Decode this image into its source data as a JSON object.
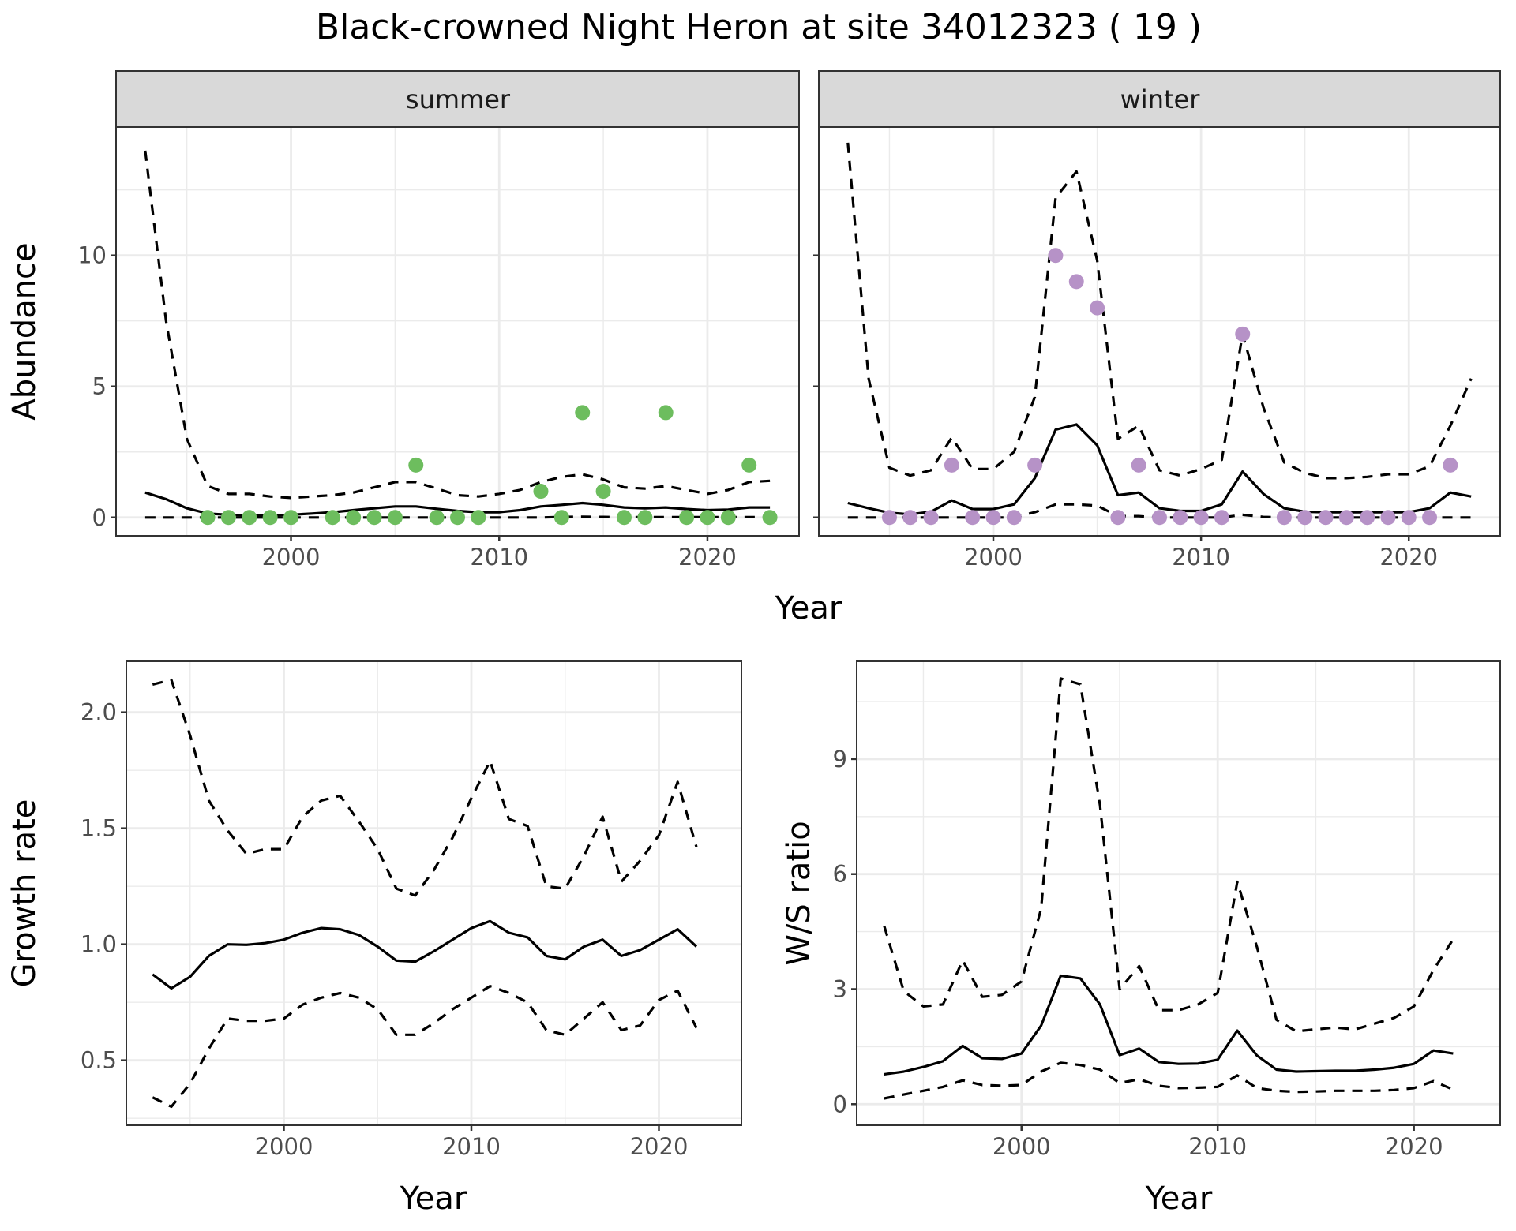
{
  "title": "Black-crowned Night Heron at site 34012323 ( 19 )",
  "colors": {
    "summer_points": "#6dbd5e",
    "winter_points": "#b692c7",
    "line": "#000000",
    "strip_bg": "#d9d9d9",
    "grid": "#ebebeb",
    "border": "#333333",
    "tick_text": "#4d4d4d"
  },
  "chart_data": [
    {
      "type": "line",
      "panel": "summer",
      "strip_label": "summer",
      "xlabel": "Year",
      "ylabel": "Abundance",
      "xlim": [
        1991.6,
        2024.4
      ],
      "ylim": [
        -0.7,
        14.9
      ],
      "xticks": [
        2000,
        2010,
        2020
      ],
      "yticks": [
        0,
        5,
        10
      ],
      "grid": true,
      "points": {
        "name": "observed",
        "x": [
          1996,
          1997,
          1998,
          1999,
          2000,
          2002,
          2003,
          2004,
          2005,
          2006,
          2007,
          2008,
          2009,
          2012,
          2013,
          2014,
          2015,
          2016,
          2017,
          2018,
          2019,
          2020,
          2021,
          2022,
          2023
        ],
        "y": [
          0,
          0,
          0,
          0,
          0,
          0,
          0,
          0,
          0,
          2,
          0,
          0,
          0,
          1,
          0,
          4,
          1,
          0,
          0,
          4,
          0,
          0,
          0,
          2,
          0
        ]
      },
      "series": [
        {
          "name": "estimate",
          "style": "solid",
          "x": [
            1993,
            1994,
            1995,
            1996,
            1997,
            1998,
            1999,
            2000,
            2001,
            2002,
            2003,
            2004,
            2005,
            2006,
            2007,
            2008,
            2009,
            2010,
            2011,
            2012,
            2013,
            2014,
            2015,
            2016,
            2017,
            2018,
            2019,
            2020,
            2021,
            2022,
            2023
          ],
          "y": [
            0.95,
            0.7,
            0.35,
            0.15,
            0.1,
            0.08,
            0.08,
            0.1,
            0.15,
            0.2,
            0.28,
            0.35,
            0.42,
            0.42,
            0.33,
            0.25,
            0.2,
            0.2,
            0.28,
            0.42,
            0.48,
            0.55,
            0.48,
            0.38,
            0.35,
            0.38,
            0.32,
            0.28,
            0.3,
            0.38,
            0.38
          ]
        },
        {
          "name": "upper",
          "style": "dashed",
          "x": [
            1993,
            1994,
            1995,
            1996,
            1997,
            1998,
            1999,
            2000,
            2001,
            2002,
            2003,
            2004,
            2005,
            2006,
            2007,
            2008,
            2009,
            2010,
            2011,
            2012,
            2013,
            2014,
            2015,
            2016,
            2017,
            2018,
            2019,
            2020,
            2021,
            2022,
            2023
          ],
          "y": [
            14.0,
            7.5,
            3.0,
            1.2,
            0.9,
            0.9,
            0.8,
            0.75,
            0.8,
            0.85,
            0.95,
            1.15,
            1.35,
            1.35,
            1.1,
            0.85,
            0.8,
            0.9,
            1.05,
            1.35,
            1.55,
            1.65,
            1.45,
            1.15,
            1.1,
            1.2,
            1.05,
            0.9,
            1.05,
            1.35,
            1.4
          ]
        },
        {
          "name": "lower",
          "style": "dashed",
          "x": [
            1993,
            1994,
            1995,
            1996,
            1997,
            1998,
            1999,
            2000,
            2001,
            2002,
            2003,
            2004,
            2005,
            2006,
            2007,
            2008,
            2009,
            2010,
            2011,
            2012,
            2013,
            2014,
            2015,
            2016,
            2017,
            2018,
            2019,
            2020,
            2021,
            2022,
            2023
          ],
          "y": [
            0,
            0,
            0,
            0,
            0,
            0,
            0,
            0,
            0,
            0,
            0,
            0,
            0,
            0,
            0,
            0,
            0,
            0,
            0,
            0,
            0.02,
            0.03,
            0.02,
            0.01,
            0.01,
            0.01,
            0.01,
            0.01,
            0.01,
            0.01,
            0.01
          ]
        }
      ]
    },
    {
      "type": "line",
      "panel": "winter",
      "strip_label": "winter",
      "xlabel": "Year",
      "ylabel": "Abundance",
      "xlim": [
        1991.6,
        2024.4
      ],
      "ylim": [
        -0.7,
        14.9
      ],
      "xticks": [
        2000,
        2010,
        2020
      ],
      "yticks": [
        0,
        5,
        10
      ],
      "grid": true,
      "points": {
        "name": "observed",
        "x": [
          1995,
          1996,
          1997,
          1998,
          1999,
          2000,
          2001,
          2002,
          2003,
          2004,
          2005,
          2006,
          2007,
          2008,
          2009,
          2010,
          2011,
          2012,
          2014,
          2015,
          2016,
          2017,
          2018,
          2019,
          2020,
          2021,
          2022
        ],
        "y": [
          0,
          0,
          0,
          2,
          0,
          0,
          0,
          2,
          10,
          9,
          8,
          0,
          2,
          0,
          0,
          0,
          0,
          7,
          0,
          0,
          0,
          0,
          0,
          0,
          0,
          0,
          2
        ]
      },
      "series": [
        {
          "name": "estimate",
          "style": "solid",
          "x": [
            1993,
            1994,
            1995,
            1996,
            1997,
            1998,
            1999,
            2000,
            2001,
            2002,
            2003,
            2004,
            2005,
            2006,
            2007,
            2008,
            2009,
            2010,
            2011,
            2012,
            2013,
            2014,
            2015,
            2016,
            2017,
            2018,
            2019,
            2020,
            2021,
            2022,
            2023
          ],
          "y": [
            0.55,
            0.35,
            0.18,
            0.12,
            0.22,
            0.65,
            0.32,
            0.32,
            0.5,
            1.5,
            3.35,
            3.55,
            2.75,
            0.85,
            0.95,
            0.35,
            0.25,
            0.25,
            0.5,
            1.75,
            0.9,
            0.35,
            0.22,
            0.2,
            0.2,
            0.2,
            0.2,
            0.2,
            0.35,
            0.95,
            0.8
          ]
        },
        {
          "name": "upper",
          "style": "dashed",
          "x": [
            1993,
            1994,
            1995,
            1996,
            1997,
            1998,
            1999,
            2000,
            2001,
            2002,
            2003,
            2004,
            2005,
            2006,
            2007,
            2008,
            2009,
            2010,
            2011,
            2012,
            2013,
            2014,
            2015,
            2016,
            2017,
            2018,
            2019,
            2020,
            2021,
            2022,
            2023
          ],
          "y": [
            14.3,
            5.3,
            1.9,
            1.6,
            1.8,
            3.05,
            1.85,
            1.85,
            2.5,
            4.6,
            12.2,
            13.2,
            9.8,
            3.0,
            3.5,
            1.8,
            1.6,
            1.85,
            2.2,
            7.0,
            4.2,
            2.1,
            1.7,
            1.5,
            1.5,
            1.55,
            1.65,
            1.65,
            1.95,
            3.5,
            5.3
          ]
        },
        {
          "name": "lower",
          "style": "dashed",
          "x": [
            1993,
            1994,
            1995,
            1996,
            1997,
            1998,
            1999,
            2000,
            2001,
            2002,
            2003,
            2004,
            2005,
            2006,
            2007,
            2008,
            2009,
            2010,
            2011,
            2012,
            2013,
            2014,
            2015,
            2016,
            2017,
            2018,
            2019,
            2020,
            2021,
            2022,
            2023
          ],
          "y": [
            0,
            0,
            0,
            0,
            0,
            0,
            0,
            0,
            0,
            0.2,
            0.5,
            0.5,
            0.45,
            0.05,
            0.05,
            0,
            0,
            0,
            0,
            0.1,
            0.02,
            0,
            0,
            0,
            0,
            0,
            0,
            0,
            0,
            0,
            0
          ]
        }
      ]
    },
    {
      "type": "line",
      "panel": "growth",
      "xlabel": "Year",
      "ylabel": "Growth rate",
      "xlim": [
        1991.6,
        2024.4
      ],
      "ylim": [
        0.22,
        2.22
      ],
      "xticks": [
        2000,
        2010,
        2020
      ],
      "yticks": [
        0.5,
        1.0,
        1.5,
        2.0
      ],
      "ytick_labels": [
        "0.5",
        "1.0",
        "1.5",
        "2.0"
      ],
      "grid": true,
      "series": [
        {
          "name": "estimate",
          "style": "solid",
          "x": [
            1993,
            1994,
            1995,
            1996,
            1997,
            1998,
            1999,
            2000,
            2001,
            2002,
            2003,
            2004,
            2005,
            2006,
            2007,
            2008,
            2009,
            2010,
            2011,
            2012,
            2013,
            2014,
            2015,
            2016,
            2017,
            2018,
            2019,
            2020,
            2021,
            2022
          ],
          "y": [
            0.87,
            0.81,
            0.86,
            0.95,
            1.0,
            0.998,
            1.005,
            1.02,
            1.05,
            1.07,
            1.065,
            1.04,
            0.99,
            0.93,
            0.925,
            0.97,
            1.02,
            1.07,
            1.1,
            1.05,
            1.03,
            0.95,
            0.935,
            0.99,
            1.02,
            0.95,
            0.975,
            1.02,
            1.065,
            0.99
          ]
        },
        {
          "name": "upper",
          "style": "dashed",
          "x": [
            1993,
            1994,
            1995,
            1996,
            1997,
            1998,
            1999,
            2000,
            2001,
            2002,
            2003,
            2004,
            2005,
            2006,
            2007,
            2008,
            2009,
            2010,
            2011,
            2012,
            2013,
            2014,
            2015,
            2016,
            2017,
            2018,
            2019,
            2020,
            2021,
            2022
          ],
          "y": [
            2.12,
            2.14,
            1.9,
            1.62,
            1.49,
            1.39,
            1.41,
            1.41,
            1.55,
            1.62,
            1.64,
            1.53,
            1.41,
            1.24,
            1.21,
            1.32,
            1.46,
            1.63,
            1.79,
            1.54,
            1.51,
            1.25,
            1.24,
            1.38,
            1.55,
            1.27,
            1.36,
            1.47,
            1.7,
            1.42
          ]
        },
        {
          "name": "lower",
          "style": "dashed",
          "x": [
            1993,
            1994,
            1995,
            1996,
            1997,
            1998,
            1999,
            2000,
            2001,
            2002,
            2003,
            2004,
            2005,
            2006,
            2007,
            2008,
            2009,
            2010,
            2011,
            2012,
            2013,
            2014,
            2015,
            2016,
            2017,
            2018,
            2019,
            2020,
            2021,
            2022
          ],
          "y": [
            0.34,
            0.3,
            0.4,
            0.55,
            0.68,
            0.67,
            0.67,
            0.68,
            0.74,
            0.77,
            0.79,
            0.77,
            0.72,
            0.61,
            0.61,
            0.66,
            0.72,
            0.77,
            0.82,
            0.79,
            0.75,
            0.63,
            0.61,
            0.68,
            0.75,
            0.63,
            0.65,
            0.76,
            0.8,
            0.64
          ]
        }
      ]
    },
    {
      "type": "line",
      "panel": "ratio",
      "xlabel": "Year",
      "ylabel": "W/S ratio",
      "xlim": [
        1991.6,
        2024.4
      ],
      "ylim": [
        -0.55,
        11.55
      ],
      "xticks": [
        2000,
        2010,
        2020
      ],
      "yticks": [
        0,
        3,
        6,
        9
      ],
      "grid": true,
      "series": [
        {
          "name": "estimate",
          "style": "solid",
          "x": [
            1993,
            1994,
            1995,
            1996,
            1997,
            1998,
            1999,
            2000,
            2001,
            2002,
            2003,
            2004,
            2005,
            2006,
            2007,
            2008,
            2009,
            2010,
            2011,
            2012,
            2013,
            2014,
            2015,
            2016,
            2017,
            2018,
            2019,
            2020,
            2021,
            2022
          ],
          "y": [
            0.78,
            0.85,
            0.97,
            1.12,
            1.52,
            1.2,
            1.18,
            1.32,
            2.05,
            3.35,
            3.28,
            2.6,
            1.28,
            1.45,
            1.1,
            1.05,
            1.06,
            1.16,
            1.92,
            1.27,
            0.9,
            0.85,
            0.86,
            0.87,
            0.87,
            0.9,
            0.95,
            1.05,
            1.4,
            1.32
          ]
        },
        {
          "name": "upper",
          "style": "dashed",
          "x": [
            1993,
            1994,
            1995,
            1996,
            1997,
            1998,
            1999,
            2000,
            2001,
            2002,
            2003,
            2004,
            2005,
            2006,
            2007,
            2008,
            2009,
            2010,
            2011,
            2012,
            2013,
            2014,
            2015,
            2016,
            2017,
            2018,
            2019,
            2020,
            2021,
            2022
          ],
          "y": [
            4.65,
            2.95,
            2.55,
            2.6,
            3.75,
            2.8,
            2.85,
            3.2,
            5.1,
            11.1,
            10.95,
            7.8,
            3.0,
            3.6,
            2.45,
            2.45,
            2.6,
            2.9,
            5.8,
            4.1,
            2.2,
            1.9,
            1.95,
            2.0,
            1.95,
            2.1,
            2.25,
            2.55,
            3.5,
            4.3
          ]
        },
        {
          "name": "lower",
          "style": "dashed",
          "x": [
            1993,
            1994,
            1995,
            1996,
            1997,
            1998,
            1999,
            2000,
            2001,
            2002,
            2003,
            2004,
            2005,
            2006,
            2007,
            2008,
            2009,
            2010,
            2011,
            2012,
            2013,
            2014,
            2015,
            2016,
            2017,
            2018,
            2019,
            2020,
            2021,
            2022
          ],
          "y": [
            0.15,
            0.25,
            0.35,
            0.45,
            0.62,
            0.5,
            0.48,
            0.5,
            0.85,
            1.08,
            1.02,
            0.9,
            0.55,
            0.65,
            0.48,
            0.42,
            0.43,
            0.45,
            0.75,
            0.42,
            0.35,
            0.32,
            0.33,
            0.35,
            0.35,
            0.35,
            0.37,
            0.42,
            0.6,
            0.38
          ]
        }
      ]
    }
  ]
}
